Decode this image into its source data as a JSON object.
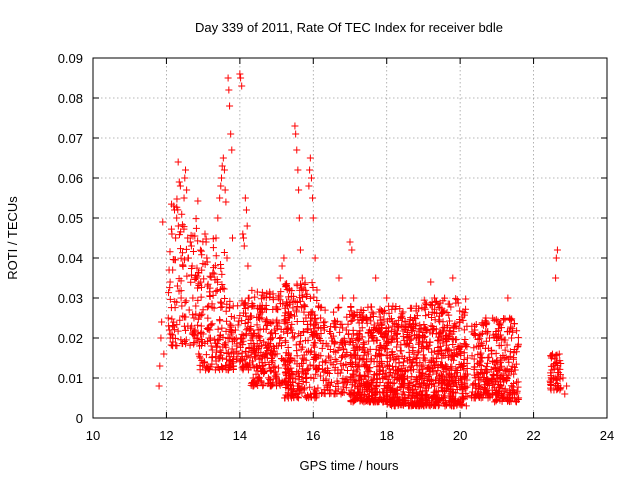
{
  "chart_data": {
    "type": "scatter",
    "title": "Day 339 of 2011, Rate Of TEC Index for receiver bdle",
    "xlabel": "GPS time / hours",
    "ylabel": "ROTI / TECUs",
    "xlim": [
      10,
      24
    ],
    "ylim": [
      0,
      0.09
    ],
    "x_ticks": [
      10,
      12,
      14,
      16,
      18,
      20,
      22,
      24
    ],
    "y_ticks": [
      0,
      0.01,
      0.02,
      0.03,
      0.04,
      0.05,
      0.06,
      0.07,
      0.08,
      0.09
    ],
    "x_tick_labels": [
      "10",
      "12",
      "14",
      "16",
      "18",
      "20",
      "22",
      "24"
    ],
    "y_tick_labels": [
      "0",
      "0.01",
      "0.02",
      "0.03",
      "0.04",
      "0.05",
      "0.06",
      "0.07",
      "0.08",
      "0.09"
    ],
    "grid": true,
    "marker": "+",
    "marker_color": "#ff0000",
    "points": [
      [
        11.8,
        0.008
      ],
      [
        11.82,
        0.013
      ],
      [
        11.85,
        0.02
      ],
      [
        11.87,
        0.024
      ],
      [
        11.9,
        0.049
      ],
      [
        11.93,
        0.016
      ],
      [
        12.05,
        0.025
      ],
      [
        12.08,
        0.022
      ],
      [
        12.1,
        0.034
      ],
      [
        12.12,
        0.021
      ],
      [
        12.15,
        0.046
      ],
      [
        12.17,
        0.037
      ],
      [
        12.2,
        0.053
      ],
      [
        12.22,
        0.052
      ],
      [
        12.25,
        0.045
      ],
      [
        12.28,
        0.05
      ],
      [
        12.3,
        0.033
      ],
      [
        12.32,
        0.064
      ],
      [
        12.35,
        0.059
      ],
      [
        12.38,
        0.058
      ],
      [
        12.4,
        0.03
      ],
      [
        12.42,
        0.028
      ],
      [
        12.45,
        0.038
      ],
      [
        12.48,
        0.055
      ],
      [
        12.5,
        0.06
      ],
      [
        12.52,
        0.062
      ],
      [
        12.55,
        0.057
      ],
      [
        12.58,
        0.045
      ],
      [
        12.6,
        0.04
      ],
      [
        12.62,
        0.027
      ],
      [
        12.65,
        0.044
      ],
      [
        12.68,
        0.043
      ],
      [
        12.7,
        0.038
      ],
      [
        12.72,
        0.03
      ],
      [
        12.75,
        0.025
      ],
      [
        12.78,
        0.022
      ],
      [
        12.8,
        0.028
      ],
      [
        12.82,
        0.035
      ],
      [
        12.85,
        0.02
      ],
      [
        12.88,
        0.016
      ],
      [
        12.9,
        0.018
      ],
      [
        12.92,
        0.015
      ],
      [
        12.95,
        0.023
      ],
      [
        12.98,
        0.019
      ],
      [
        13.0,
        0.021
      ],
      [
        13.05,
        0.046
      ],
      [
        13.08,
        0.044
      ],
      [
        13.1,
        0.04
      ],
      [
        13.12,
        0.033
      ],
      [
        13.15,
        0.028
      ],
      [
        13.18,
        0.022
      ],
      [
        13.2,
        0.02
      ],
      [
        13.22,
        0.018
      ],
      [
        13.25,
        0.017
      ],
      [
        13.3,
        0.036
      ],
      [
        13.35,
        0.045
      ],
      [
        13.4,
        0.05
      ],
      [
        13.45,
        0.055
      ],
      [
        13.48,
        0.058
      ],
      [
        13.5,
        0.06
      ],
      [
        13.52,
        0.063
      ],
      [
        13.55,
        0.065
      ],
      [
        13.58,
        0.062
      ],
      [
        13.6,
        0.057
      ],
      [
        13.62,
        0.054
      ],
      [
        13.65,
        0.04
      ],
      [
        13.68,
        0.085
      ],
      [
        13.7,
        0.082
      ],
      [
        13.72,
        0.078
      ],
      [
        13.75,
        0.071
      ],
      [
        13.78,
        0.067
      ],
      [
        13.8,
        0.045
      ],
      [
        13.82,
        0.028
      ],
      [
        13.85,
        0.025
      ],
      [
        13.88,
        0.022
      ],
      [
        13.9,
        0.02
      ],
      [
        13.92,
        0.018
      ],
      [
        13.95,
        0.016
      ],
      [
        14.0,
        0.086
      ],
      [
        14.02,
        0.085
      ],
      [
        14.05,
        0.083
      ],
      [
        14.08,
        0.046
      ],
      [
        14.1,
        0.045
      ],
      [
        14.12,
        0.043
      ],
      [
        14.15,
        0.055
      ],
      [
        14.18,
        0.052
      ],
      [
        14.2,
        0.048
      ],
      [
        14.22,
        0.038
      ],
      [
        14.25,
        0.03
      ],
      [
        14.28,
        0.025
      ],
      [
        14.3,
        0.022
      ],
      [
        14.35,
        0.02
      ],
      [
        14.4,
        0.018
      ],
      [
        14.45,
        0.017
      ],
      [
        14.5,
        0.022
      ],
      [
        14.55,
        0.028
      ],
      [
        14.6,
        0.025
      ],
      [
        14.65,
        0.019
      ],
      [
        14.7,
        0.016
      ],
      [
        14.75,
        0.015
      ],
      [
        14.8,
        0.018
      ],
      [
        14.85,
        0.02
      ],
      [
        14.9,
        0.024
      ],
      [
        14.95,
        0.022
      ],
      [
        15.0,
        0.018
      ],
      [
        15.05,
        0.03
      ],
      [
        15.1,
        0.035
      ],
      [
        15.15,
        0.038
      ],
      [
        15.2,
        0.04
      ],
      [
        15.25,
        0.033
      ],
      [
        15.3,
        0.028
      ],
      [
        15.35,
        0.025
      ],
      [
        15.4,
        0.022
      ],
      [
        15.45,
        0.02
      ],
      [
        15.5,
        0.073
      ],
      [
        15.52,
        0.071
      ],
      [
        15.55,
        0.067
      ],
      [
        15.58,
        0.062
      ],
      [
        15.6,
        0.057
      ],
      [
        15.62,
        0.05
      ],
      [
        15.65,
        0.042
      ],
      [
        15.7,
        0.035
      ],
      [
        15.75,
        0.028
      ],
      [
        15.8,
        0.025
      ],
      [
        15.85,
        0.022
      ],
      [
        15.88,
        0.058
      ],
      [
        15.9,
        0.062
      ],
      [
        15.92,
        0.065
      ],
      [
        15.95,
        0.06
      ],
      [
        15.98,
        0.055
      ],
      [
        16.0,
        0.05
      ],
      [
        16.05,
        0.04
      ],
      [
        16.1,
        0.032
      ],
      [
        16.15,
        0.028
      ],
      [
        16.2,
        0.025
      ],
      [
        16.3,
        0.022
      ],
      [
        16.4,
        0.018
      ],
      [
        16.5,
        0.02
      ],
      [
        16.6,
        0.024
      ],
      [
        16.7,
        0.035
      ],
      [
        16.8,
        0.03
      ],
      [
        16.9,
        0.022
      ],
      [
        17.0,
        0.044
      ],
      [
        17.05,
        0.042
      ],
      [
        17.1,
        0.03
      ],
      [
        17.15,
        0.015
      ],
      [
        17.2,
        0.012
      ],
      [
        17.3,
        0.01
      ],
      [
        17.4,
        0.013
      ],
      [
        17.5,
        0.016
      ],
      [
        17.6,
        0.02
      ],
      [
        17.7,
        0.035
      ],
      [
        17.8,
        0.012
      ],
      [
        17.9,
        0.01
      ],
      [
        18.0,
        0.03
      ],
      [
        18.1,
        0.015
      ],
      [
        18.2,
        0.02
      ],
      [
        18.3,
        0.012
      ],
      [
        18.4,
        0.01
      ],
      [
        18.5,
        0.024
      ],
      [
        18.6,
        0.018
      ],
      [
        18.7,
        0.014
      ],
      [
        18.8,
        0.02
      ],
      [
        18.9,
        0.012
      ],
      [
        19.0,
        0.015
      ],
      [
        19.1,
        0.022
      ],
      [
        19.2,
        0.034
      ],
      [
        19.3,
        0.03
      ],
      [
        19.4,
        0.013
      ],
      [
        19.5,
        0.015
      ],
      [
        19.6,
        0.02
      ],
      [
        19.7,
        0.012
      ],
      [
        19.8,
        0.035
      ],
      [
        19.9,
        0.016
      ],
      [
        20.0,
        0.018
      ],
      [
        20.1,
        0.012
      ],
      [
        20.2,
        0.015
      ],
      [
        20.4,
        0.022
      ],
      [
        20.5,
        0.01
      ],
      [
        20.6,
        0.015
      ],
      [
        20.7,
        0.025
      ],
      [
        20.8,
        0.02
      ],
      [
        21.0,
        0.01
      ],
      [
        21.1,
        0.008
      ],
      [
        21.2,
        0.015
      ],
      [
        21.3,
        0.03
      ],
      [
        21.4,
        0.02
      ],
      [
        21.5,
        0.012
      ],
      [
        22.5,
        0.012
      ],
      [
        22.55,
        0.01
      ],
      [
        22.6,
        0.035
      ],
      [
        22.62,
        0.04
      ],
      [
        22.65,
        0.042
      ],
      [
        22.7,
        0.016
      ],
      [
        22.8,
        0.01
      ],
      [
        22.85,
        0.006
      ],
      [
        22.9,
        0.008
      ]
    ],
    "clusters": [
      {
        "x": [
          12.05,
          12.9
        ],
        "y": [
          0.018,
          0.055
        ],
        "n": 110
      },
      {
        "x": [
          12.9,
          13.6
        ],
        "y": [
          0.012,
          0.045
        ],
        "n": 120
      },
      {
        "x": [
          13.6,
          14.3
        ],
        "y": [
          0.012,
          0.03
        ],
        "n": 120
      },
      {
        "x": [
          14.3,
          15.4
        ],
        "y": [
          0.008,
          0.032
        ],
        "n": 260
      },
      {
        "x": [
          15.2,
          16.1
        ],
        "y": [
          0.005,
          0.034
        ],
        "n": 220
      },
      {
        "x": [
          16.0,
          17.0
        ],
        "y": [
          0.006,
          0.028
        ],
        "n": 160
      },
      {
        "x": [
          17.0,
          18.0
        ],
        "y": [
          0.004,
          0.028
        ],
        "n": 360
      },
      {
        "x": [
          18.0,
          19.0
        ],
        "y": [
          0.003,
          0.028
        ],
        "n": 380
      },
      {
        "x": [
          19.0,
          20.2
        ],
        "y": [
          0.003,
          0.03
        ],
        "n": 420
      },
      {
        "x": [
          20.3,
          20.9
        ],
        "y": [
          0.005,
          0.025
        ],
        "n": 140
      },
      {
        "x": [
          20.9,
          21.6
        ],
        "y": [
          0.004,
          0.025
        ],
        "n": 170
      },
      {
        "x": [
          22.45,
          22.75
        ],
        "y": [
          0.007,
          0.016
        ],
        "n": 50
      }
    ]
  }
}
